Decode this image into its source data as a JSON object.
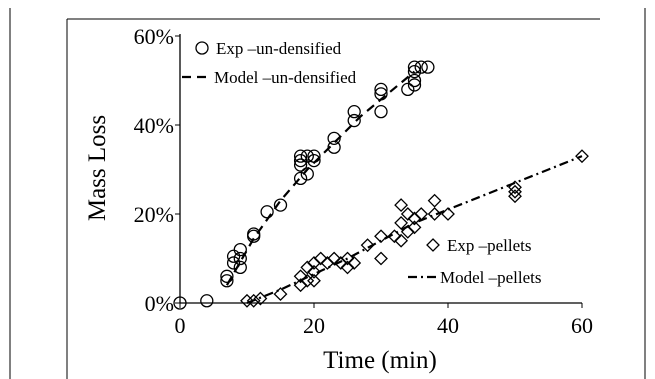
{
  "chart_data": {
    "type": "scatter",
    "xlabel": "Time (min)",
    "ylabel": "Mass Loss",
    "xlim": [
      0,
      60
    ],
    "ylim": [
      0,
      60
    ],
    "x_ticks": [
      "0",
      "20",
      "40",
      "60"
    ],
    "y_ticks": [
      "0%",
      "20%",
      "40%",
      "60%"
    ],
    "grid": false,
    "series": [
      {
        "name": "Exp – un-densified",
        "kind": "markers",
        "marker": "circle",
        "points": [
          [
            0,
            0
          ],
          [
            4,
            0.5
          ],
          [
            7,
            5
          ],
          [
            7,
            6
          ],
          [
            8,
            9
          ],
          [
            8,
            10.5
          ],
          [
            9,
            8
          ],
          [
            9,
            10
          ],
          [
            9,
            12
          ],
          [
            11,
            15
          ],
          [
            11,
            15.5
          ],
          [
            13,
            20.5
          ],
          [
            15,
            22
          ],
          [
            18,
            28
          ],
          [
            18,
            31
          ],
          [
            18,
            32
          ],
          [
            18,
            33
          ],
          [
            19,
            29
          ],
          [
            19,
            33
          ],
          [
            20,
            32
          ],
          [
            20,
            33
          ],
          [
            23,
            35
          ],
          [
            23,
            37
          ],
          [
            26,
            41
          ],
          [
            26,
            43
          ],
          [
            30,
            43
          ],
          [
            30,
            47
          ],
          [
            30,
            48
          ],
          [
            34,
            48
          ],
          [
            35,
            49
          ],
          [
            35,
            50
          ],
          [
            35,
            52
          ],
          [
            35,
            53
          ],
          [
            36,
            53
          ],
          [
            37,
            53
          ]
        ]
      },
      {
        "name": "Model – un-densified",
        "kind": "line",
        "dash": "dash",
        "points": [
          [
            7,
            4
          ],
          [
            11,
            14.5
          ],
          [
            15,
            23
          ],
          [
            19,
            30
          ],
          [
            23,
            36
          ],
          [
            27,
            42
          ],
          [
            31,
            47
          ],
          [
            35,
            52
          ]
        ]
      },
      {
        "name": "Exp – pellets",
        "kind": "markers",
        "marker": "diamond",
        "points": [
          [
            10,
            0.5
          ],
          [
            11,
            0.5
          ],
          [
            12,
            1
          ],
          [
            15,
            2
          ],
          [
            18,
            4
          ],
          [
            18,
            6
          ],
          [
            19,
            5
          ],
          [
            19,
            8
          ],
          [
            20,
            5
          ],
          [
            20,
            7
          ],
          [
            20,
            9
          ],
          [
            21,
            10
          ],
          [
            22,
            9
          ],
          [
            23,
            10
          ],
          [
            24,
            9
          ],
          [
            25,
            8
          ],
          [
            25,
            10
          ],
          [
            26,
            9
          ],
          [
            28,
            13
          ],
          [
            30,
            10
          ],
          [
            30,
            15
          ],
          [
            32,
            15
          ],
          [
            33,
            14
          ],
          [
            33,
            18
          ],
          [
            33,
            22
          ],
          [
            34,
            16
          ],
          [
            34,
            20
          ],
          [
            35,
            19
          ],
          [
            35,
            17
          ],
          [
            36,
            20
          ],
          [
            38,
            20
          ],
          [
            38,
            23
          ],
          [
            40,
            20
          ],
          [
            50,
            24
          ],
          [
            50,
            25
          ],
          [
            50,
            26
          ],
          [
            60,
            33
          ]
        ]
      },
      {
        "name": "Model – pellets",
        "kind": "line",
        "dash": "dash-dot",
        "points": [
          [
            10,
            0
          ],
          [
            15,
            3
          ],
          [
            20,
            6.5
          ],
          [
            25,
            10
          ],
          [
            30,
            14
          ],
          [
            35,
            18
          ],
          [
            40,
            21
          ],
          [
            45,
            24
          ],
          [
            50,
            27
          ],
          [
            55,
            30
          ],
          [
            60,
            33
          ]
        ]
      }
    ],
    "legend": [
      {
        "label": "Exp –un-densified",
        "series": 0,
        "placement": "top-left"
      },
      {
        "label": "Model –un-densified",
        "series": 1,
        "placement": "top-left"
      },
      {
        "label": "Exp –pellets",
        "series": 2,
        "placement": "bottom-right"
      },
      {
        "label": "Model –pellets",
        "series": 3,
        "placement": "bottom-right"
      }
    ]
  }
}
